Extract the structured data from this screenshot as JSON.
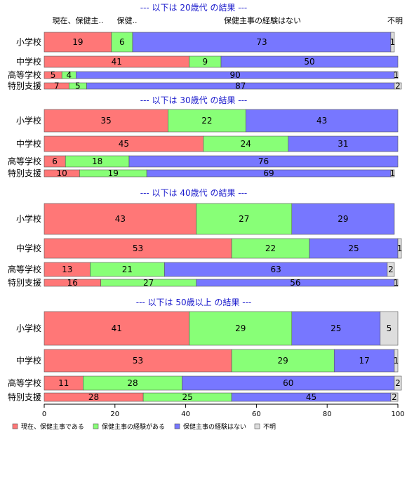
{
  "chart_data": {
    "type": "bar",
    "orientation": "horizontal-stacked-100",
    "xlim": [
      0,
      100
    ],
    "x_ticks": [
      "0",
      "20",
      "40",
      "60",
      "80",
      "100"
    ],
    "series_names": [
      "現在、保健主事である",
      "保健主事の経験がある",
      "保健主事の経験はない",
      "不明"
    ],
    "colors": [
      "#ff7777",
      "#88ff77",
      "#7777ff",
      "#dddddd"
    ],
    "header_labels": [
      "現在、保健主..",
      "保健..",
      "保健主事の経験はない",
      "不明"
    ],
    "legend_position": "bottom-left",
    "panels": [
      {
        "title": "--- 以下は 20歳代 の結果 ---",
        "rows": [
          {
            "category": "小学校",
            "values": [
              19,
              6,
              73,
              1
            ]
          },
          {
            "category": "中学校",
            "values": [
              41,
              9,
              50,
              0
            ]
          },
          {
            "category": "高等学校",
            "values": [
              5,
              4,
              90,
              1
            ]
          },
          {
            "category": "特別支援",
            "values": [
              7,
              5,
              87,
              2
            ]
          }
        ]
      },
      {
        "title": "--- 以下は 30歳代 の結果 ---",
        "rows": [
          {
            "category": "小学校",
            "values": [
              35,
              22,
              43,
              0
            ]
          },
          {
            "category": "中学校",
            "values": [
              45,
              24,
              31,
              0
            ]
          },
          {
            "category": "高等学校",
            "values": [
              6,
              18,
              76,
              0
            ]
          },
          {
            "category": "特別支援",
            "values": [
              10,
              19,
              69,
              1
            ]
          }
        ]
      },
      {
        "title": "--- 以下は 40歳代 の結果 ---",
        "rows": [
          {
            "category": "小学校",
            "values": [
              43,
              27,
              29,
              0
            ]
          },
          {
            "category": "中学校",
            "values": [
              53,
              22,
              25,
              1
            ]
          },
          {
            "category": "高等学校",
            "values": [
              13,
              21,
              63,
              2
            ]
          },
          {
            "category": "特別支援",
            "values": [
              16,
              27,
              56,
              1
            ]
          }
        ]
      },
      {
        "title": "--- 以下は 50歳以上 の結果 ---",
        "rows": [
          {
            "category": "小学校",
            "values": [
              41,
              29,
              25,
              5
            ]
          },
          {
            "category": "中学校",
            "values": [
              53,
              29,
              17,
              1
            ]
          },
          {
            "category": "高等学校",
            "values": [
              11,
              28,
              60,
              2
            ]
          },
          {
            "category": "特別支援",
            "values": [
              28,
              25,
              45,
              2
            ]
          }
        ]
      }
    ]
  }
}
